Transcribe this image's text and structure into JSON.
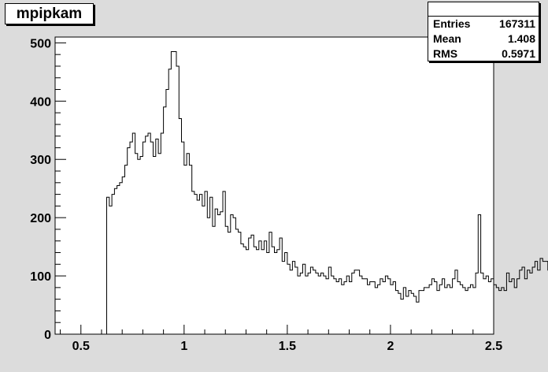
{
  "chart_data": {
    "type": "histogram",
    "title": "mpipkam",
    "xlabel": "",
    "ylabel": "",
    "xlim": [
      0.375,
      2.5
    ],
    "ylim": [
      0,
      510
    ],
    "xticks": [
      0.5,
      1,
      1.5,
      2,
      2.5
    ],
    "xtick_labels": [
      "0.5",
      "1",
      "1.5",
      "2",
      "2.5"
    ],
    "yticks": [
      0,
      100,
      200,
      300,
      400,
      500
    ],
    "ytick_labels": [
      "0",
      "100",
      "200",
      "300",
      "400",
      "500"
    ],
    "bin_width": 0.0125,
    "bin_start": 0.625,
    "values": [
      235,
      220,
      240,
      250,
      255,
      260,
      270,
      290,
      320,
      330,
      345,
      310,
      300,
      305,
      330,
      340,
      345,
      330,
      305,
      335,
      310,
      345,
      390,
      420,
      455,
      485,
      485,
      460,
      370,
      330,
      290,
      310,
      290,
      245,
      240,
      230,
      240,
      220,
      245,
      200,
      235,
      185,
      215,
      205,
      210,
      245,
      185,
      175,
      205,
      200,
      180,
      175,
      155,
      150,
      145,
      165,
      170,
      150,
      145,
      160,
      145,
      160,
      140,
      175,
      150,
      140,
      145,
      165,
      125,
      140,
      120,
      110,
      125,
      115,
      100,
      105,
      120,
      100,
      105,
      115,
      110,
      105,
      100,
      105,
      100,
      95,
      115,
      100,
      95,
      90,
      95,
      85,
      90,
      100,
      90,
      105,
      110,
      110,
      100,
      95,
      95,
      85,
      90,
      90,
      80,
      85,
      95,
      90,
      100,
      95,
      85,
      90,
      75,
      70,
      60,
      80,
      65,
      75,
      70,
      65,
      55,
      75,
      75,
      80,
      80,
      85,
      95,
      90,
      75,
      85,
      95,
      80,
      85,
      80,
      95,
      110,
      90,
      85,
      80,
      75,
      80,
      85,
      80,
      105,
      205,
      105,
      95,
      100,
      90,
      95,
      85,
      80,
      75,
      80,
      75,
      105,
      90,
      95,
      80,
      95,
      110,
      115,
      95,
      110,
      105,
      115,
      125,
      110,
      130,
      125,
      125,
      110,
      125,
      130,
      140,
      135,
      125,
      130,
      140,
      135,
      145,
      130,
      125,
      140,
      145,
      145,
      150,
      145,
      155,
      145,
      135,
      150,
      145,
      140,
      155,
      150,
      165,
      175,
      165,
      150,
      185,
      145,
      180,
      150,
      155,
      160,
      185,
      170,
      180,
      200,
      180,
      195,
      175,
      185,
      200,
      195,
      170,
      190,
      190,
      185,
      210,
      220,
      215,
      200,
      210,
      210,
      210,
      220,
      210,
      220
    ],
    "stats": {
      "entries_label": "Entries",
      "entries": "167311",
      "mean_label": "Mean",
      "mean": "1.408",
      "rms_label": "RMS",
      "rms": "0.5971"
    }
  }
}
